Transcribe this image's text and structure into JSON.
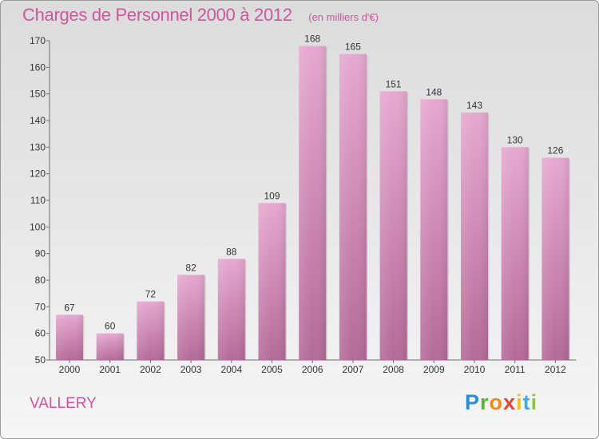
{
  "chart_data": {
    "type": "bar",
    "title": "Charges de Personnel 2000 à 2012",
    "subtitle": "(en milliers d'€)",
    "categories": [
      "2000",
      "2001",
      "2002",
      "2003",
      "2004",
      "2005",
      "2006",
      "2007",
      "2008",
      "2009",
      "2010",
      "2011",
      "2012"
    ],
    "values": [
      67,
      60,
      72,
      82,
      88,
      109,
      168,
      165,
      151,
      148,
      143,
      130,
      126
    ],
    "ylim": [
      50,
      170
    ],
    "yticks": [
      50,
      60,
      70,
      80,
      90,
      100,
      110,
      120,
      130,
      140,
      150,
      160,
      170
    ],
    "grid": false,
    "colors": {
      "bar_top": "#e6a8cf",
      "bar_bottom": "#b46a98",
      "title": "#d0559a"
    }
  },
  "footer": {
    "place": "VALLERY",
    "logo": {
      "p": "P",
      "r": "r",
      "o": "o",
      "x": "x",
      "i1": "i",
      "t": "t",
      "i2": "i"
    }
  }
}
